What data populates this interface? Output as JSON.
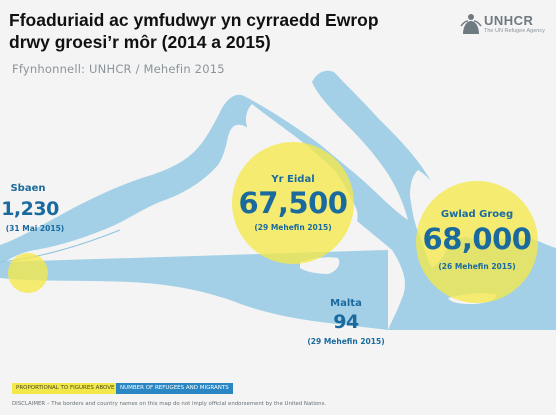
{
  "title": {
    "line1": "Ffoaduriaid ac ymfudwyr yn cyrraedd Ewrop",
    "line2": "drwy groesi’r môr (2014 a 2015)"
  },
  "source": "Ffynhonnell: UNHCR / Mehefin 2015",
  "logo": {
    "icon": "unhcr-emblem-icon",
    "wordmark": "UNHCR",
    "tagline": "The UN Refugee Agency"
  },
  "arrivals": [
    {
      "country": "Sbaen",
      "count": "1,230",
      "date": "(31 Mai 2015)"
    },
    {
      "country": "Yr Eidal",
      "count": "67,500",
      "date": "(29 Mehefin 2015)"
    },
    {
      "country": "Gwlad Groeg",
      "count": "68,000",
      "date": "(26 Mehefin 2015)"
    },
    {
      "country": "Malta",
      "count": "94",
      "date": "(29 Mehefin 2015)"
    }
  ],
  "legend": {
    "circle_label": "PROPORTIONAL TO FIGURES ABOVE",
    "number_label": "NUMBER OF REFUGEES AND MIGRANTS"
  },
  "disclaimer": "DISCLAIMER – The borders and country names on this map do not imply official endorsement by the United Nations.",
  "colors": {
    "sea": "#a3d0e6",
    "land": "#f4f4f4",
    "bubble": "#f3e84a",
    "number": "#1a6a9e",
    "legend_yellow": "#f3e84a",
    "legend_blue": "#2b87c3"
  }
}
